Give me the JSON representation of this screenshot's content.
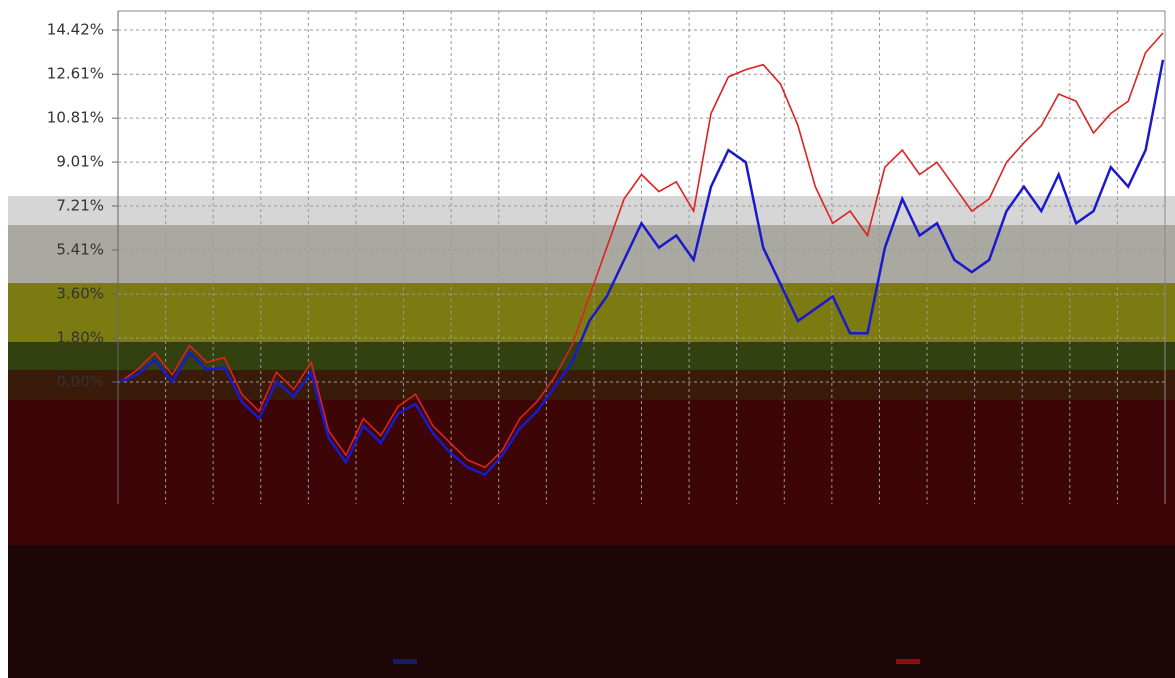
{
  "chart_data": {
    "type": "line",
    "ylim": [
      -5.0,
      15.2
    ],
    "yticks": [
      {
        "value": 0.0,
        "label": "0.00%"
      },
      {
        "value": 1.8,
        "label": "1.80%"
      },
      {
        "value": 3.6,
        "label": "3.60%"
      },
      {
        "value": 5.41,
        "label": "5.41%"
      },
      {
        "value": 7.21,
        "label": "7.21%"
      },
      {
        "value": 9.01,
        "label": "9.01%"
      },
      {
        "value": 10.81,
        "label": "10.81%"
      },
      {
        "value": 12.61,
        "label": "12.61%"
      },
      {
        "value": 14.42,
        "label": "14.42%"
      }
    ],
    "grid": true,
    "series": [
      {
        "color": "#dd2222",
        "values": [
          0,
          0.5,
          1.2,
          0.3,
          1.5,
          0.8,
          1.0,
          -0.5,
          -1.2,
          0.4,
          -0.3,
          0.8,
          -2.0,
          -3.0,
          -1.5,
          -2.2,
          -1.0,
          -0.5,
          -1.8,
          -2.5,
          -3.2,
          -3.5,
          -2.8,
          -1.5,
          -0.8,
          0.2,
          1.5,
          3.5,
          5.5,
          7.5,
          8.5,
          7.8,
          8.2,
          7.0,
          11.0,
          12.5,
          12.8,
          13.0,
          12.2,
          10.5,
          8.0,
          6.5,
          7.0,
          6.0,
          8.8,
          9.5,
          8.5,
          9.0,
          8.0,
          7.0,
          7.5,
          9.0,
          9.8,
          10.5,
          11.8,
          11.5,
          10.2,
          11.0,
          11.5,
          13.5,
          14.3
        ]
      },
      {
        "color": "#1a1acc",
        "values": [
          0,
          0.3,
          0.9,
          0.0,
          1.2,
          0.5,
          0.6,
          -0.8,
          -1.5,
          0.0,
          -0.6,
          0.4,
          -2.3,
          -3.3,
          -1.8,
          -2.5,
          -1.3,
          -0.9,
          -2.1,
          -2.9,
          -3.5,
          -3.8,
          -3.0,
          -1.9,
          -1.2,
          -0.2,
          0.8,
          2.5,
          3.5,
          5.0,
          6.5,
          5.5,
          6.0,
          5.0,
          8.0,
          9.5,
          9.0,
          5.5,
          4.0,
          2.5,
          3.0,
          3.5,
          2.0,
          2.0,
          5.5,
          7.5,
          6.0,
          6.5,
          5.0,
          4.5,
          5.0,
          7.0,
          8.0,
          7.0,
          8.5,
          6.5,
          7.0,
          8.8,
          8.0,
          9.5,
          13.2
        ]
      }
    ]
  }
}
